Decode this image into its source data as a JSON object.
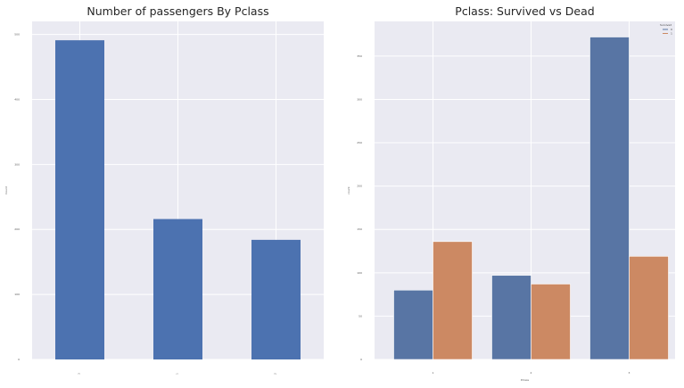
{
  "chart_data": [
    {
      "type": "bar",
      "title": "Number of passengers By Pclass",
      "xlabel": "",
      "ylabel": "Count",
      "categories": [
        "3",
        "1",
        "2"
      ],
      "values": [
        491,
        216,
        184
      ],
      "ylim": [
        0,
        520
      ],
      "yticks": [
        0,
        100,
        200,
        300,
        400,
        500
      ],
      "grid": true,
      "colors": [
        "#4c72b0"
      ]
    },
    {
      "type": "bar",
      "title": "Pclass: Survived vs Dead",
      "xlabel": "Pclass",
      "ylabel": "count",
      "categories": [
        "1",
        "2",
        "3"
      ],
      "series": [
        {
          "name": "0",
          "values": [
            80,
            97,
            372
          ],
          "color": "#5875a4"
        },
        {
          "name": "1",
          "values": [
            136,
            87,
            119
          ],
          "color": "#cc8963"
        }
      ],
      "ylim": [
        0,
        390
      ],
      "yticks": [
        0,
        50,
        100,
        150,
        200,
        250,
        300,
        350
      ],
      "legend": {
        "title": "Survived",
        "placement": "top-right"
      },
      "grid": true
    }
  ]
}
